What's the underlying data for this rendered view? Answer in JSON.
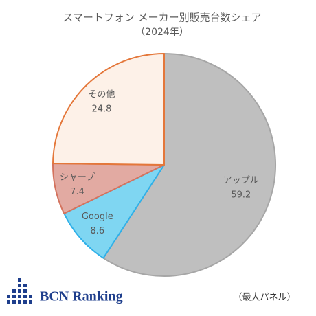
{
  "chart_data": {
    "type": "pie",
    "title": "スマートフォン メーカー別販売台数シェア",
    "subtitle": "（2024年）",
    "categories": [
      "アップル",
      "Google",
      "シャープ",
      "その他"
    ],
    "values": [
      59.2,
      8.6,
      7.4,
      24.8
    ],
    "colors": [
      "#bfbfbf",
      "#7fd6f2",
      "#e2aaa2",
      "#fdf1e8"
    ],
    "edge_colors": [
      "#a6a6a6",
      "#2fb0e8",
      "#d4735e",
      "#e4773a"
    ],
    "source": "BCN Ranking",
    "note": "（最大パネル）"
  }
}
